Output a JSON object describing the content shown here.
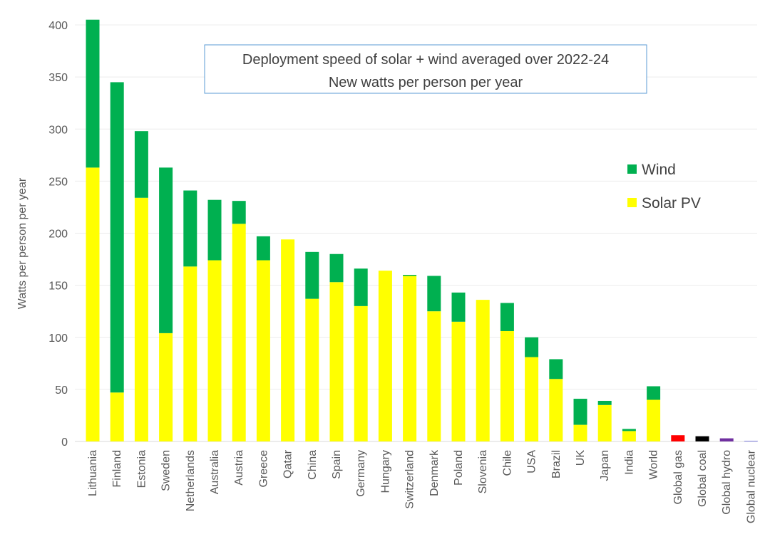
{
  "chart_data": {
    "type": "bar",
    "stacked": true,
    "title": "Deployment speed of solar + wind averaged over 2022-24",
    "subtitle": "New watts per person per year",
    "xlabel": "",
    "ylabel": "Watts per person per year",
    "ylim": [
      0,
      400
    ],
    "yticks": [
      0,
      50,
      100,
      150,
      200,
      250,
      300,
      350,
      400
    ],
    "grid": true,
    "legend_position": "right",
    "categories": [
      "Lithuania",
      "Finland",
      "Estonia",
      "Sweden",
      "Netherlands",
      "Australia",
      "Austria",
      "Greece",
      "Qatar",
      "China",
      "Spain",
      "Germany",
      "Hungary",
      "Switzerland",
      "Denmark",
      "Poland",
      "Slovenia",
      "Chile",
      "USA",
      "Brazil",
      "UK",
      "Japan",
      "India",
      "World",
      "Global gas",
      "Global coal",
      "Global hydro",
      "Global nuclear"
    ],
    "series": [
      {
        "name": "Solar PV",
        "color": "#ffff00",
        "values": [
          263,
          47,
          234,
          104,
          168,
          174,
          209,
          174,
          194,
          137,
          153,
          130,
          164,
          159,
          125,
          115,
          136,
          106,
          81,
          60,
          16,
          35,
          10,
          40,
          0,
          0,
          0,
          0
        ]
      },
      {
        "name": "Wind",
        "color": "#00b050",
        "values": [
          142,
          298,
          64,
          159,
          73,
          58,
          22,
          23,
          0,
          45,
          27,
          36,
          0,
          1,
          34,
          28,
          0,
          27,
          19,
          19,
          25,
          4,
          2,
          13,
          0,
          0,
          0,
          0
        ]
      },
      {
        "values": [
          0,
          0,
          0,
          0,
          0,
          0,
          0,
          0,
          0,
          0,
          0,
          0,
          0,
          0,
          0,
          0,
          0,
          0,
          0,
          0,
          0,
          0,
          0,
          0,
          6,
          5,
          3,
          0.5
        ]
      }
    ],
    "other_colors": {
      "Global gas": "#ff0000",
      "Global coal": "#000000",
      "Global hydro": "#7030a0",
      "Global nuclear": "#5b5bd6"
    },
    "legend": [
      "Wind",
      "Solar PV"
    ]
  }
}
